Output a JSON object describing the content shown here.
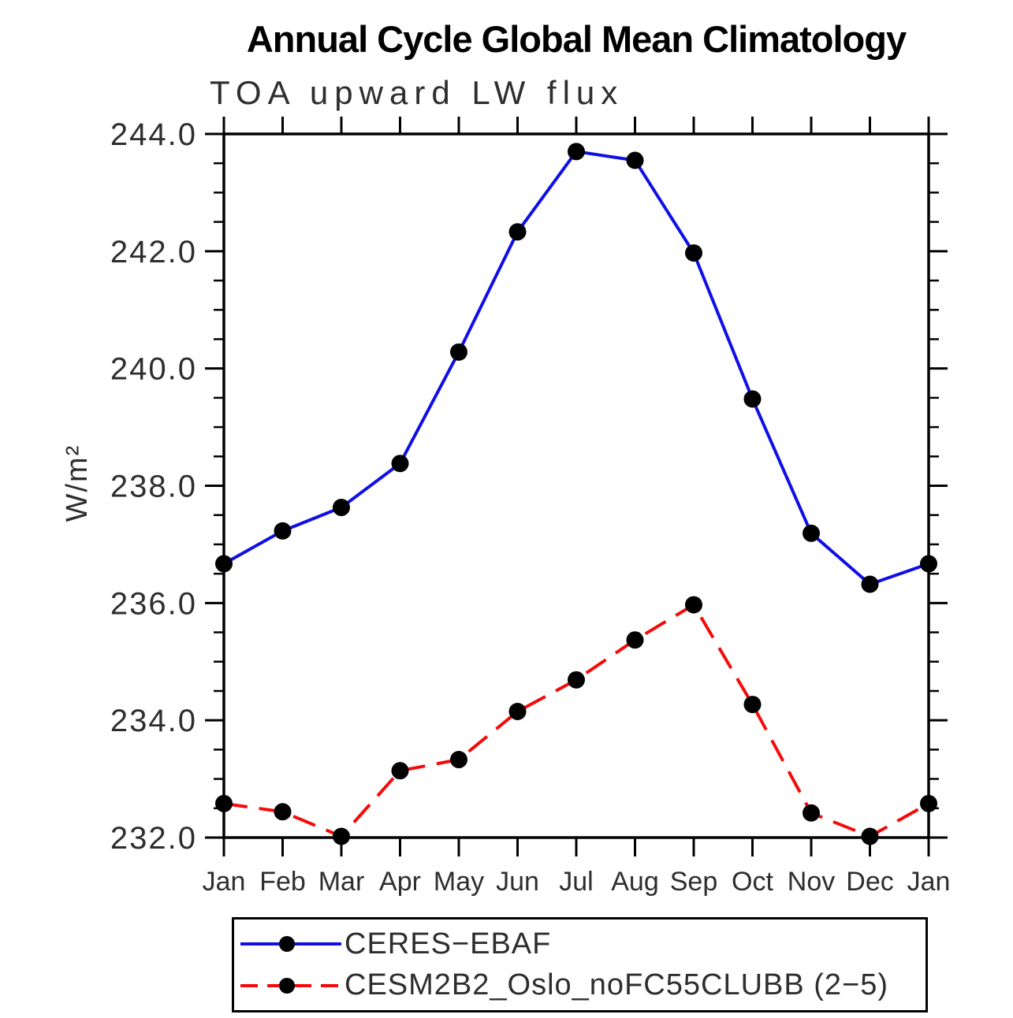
{
  "chart_data": {
    "type": "line",
    "title": "Annual Cycle Global Mean Climatology",
    "subtitle": "TOA upward LW flux",
    "ylabel": "W/m²",
    "xlabel": "",
    "categories": [
      "Jan",
      "Feb",
      "Mar",
      "Apr",
      "May",
      "Jun",
      "Jul",
      "Aug",
      "Sep",
      "Oct",
      "Nov",
      "Dec",
      "Jan"
    ],
    "series": [
      {
        "name": "CERES−EBAF",
        "color": "#0f0fe6",
        "line_style": "solid",
        "marker": "circle",
        "marker_color": "#000000",
        "values": [
          236.67,
          237.23,
          237.63,
          238.38,
          240.28,
          242.33,
          243.7,
          243.55,
          241.97,
          239.48,
          237.19,
          236.32,
          236.67
        ]
      },
      {
        "name": "CESM2B2_Oslo_noFC55CLUBB (2−5)",
        "color": "#f50a0a",
        "line_style": "dashed",
        "marker": "circle",
        "marker_color": "#000000",
        "values": [
          232.58,
          232.44,
          232.02,
          233.14,
          233.33,
          234.15,
          234.69,
          235.37,
          235.97,
          234.27,
          232.42,
          232.02,
          232.58
        ]
      }
    ],
    "ylim": [
      232.0,
      244.0
    ],
    "y_major_tick_step": 2.0,
    "y_minor_tick_step": 0.5,
    "y_tick_labels": [
      "232.0",
      "234.0",
      "236.0",
      "238.0",
      "240.0",
      "242.0",
      "244.0"
    ],
    "grid": false,
    "legend_position": "bottom",
    "axis_color": "#000000"
  }
}
